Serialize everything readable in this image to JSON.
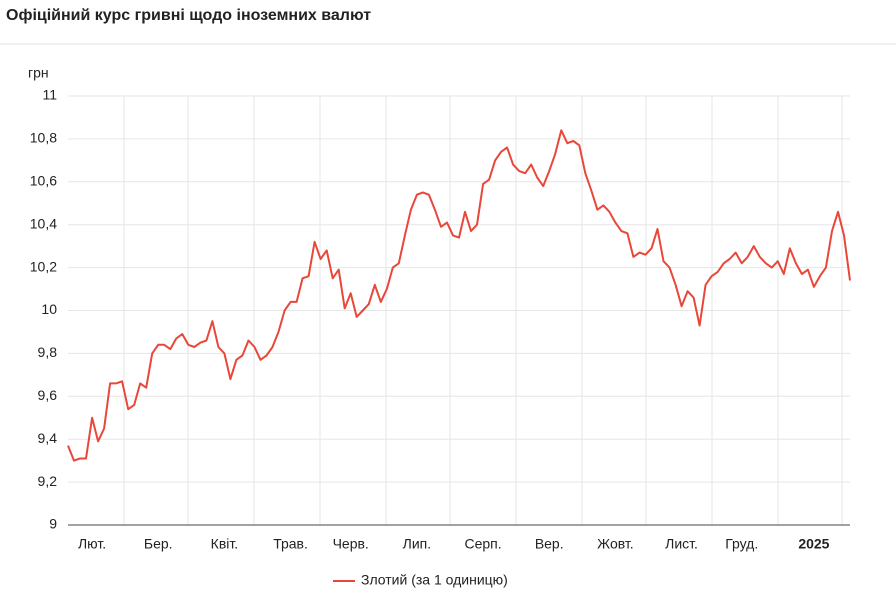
{
  "title": "Офіційний курс гривні щодо іноземних валют",
  "chart_data": {
    "type": "line",
    "y_label": "грн",
    "categories": [
      null,
      null,
      null,
      null,
      "Лют.",
      null,
      null,
      null,
      null,
      null,
      null,
      null,
      null,
      null,
      null,
      "Бер.",
      null,
      null,
      null,
      null,
      null,
      null,
      null,
      null,
      null,
      null,
      "Квіт.",
      null,
      null,
      null,
      null,
      null,
      null,
      null,
      null,
      null,
      null,
      "Трав.",
      null,
      null,
      null,
      null,
      null,
      null,
      null,
      null,
      null,
      "Черв.",
      null,
      null,
      null,
      null,
      null,
      null,
      null,
      null,
      null,
      null,
      "Лип.",
      null,
      null,
      null,
      null,
      null,
      null,
      null,
      null,
      null,
      null,
      "Серп.",
      null,
      null,
      null,
      null,
      null,
      null,
      null,
      null,
      null,
      null,
      "Вер.",
      null,
      null,
      null,
      null,
      null,
      null,
      null,
      null,
      null,
      null,
      "Жовт.",
      null,
      null,
      null,
      null,
      null,
      null,
      null,
      null,
      null,
      null,
      "Лист.",
      null,
      null,
      null,
      null,
      null,
      null,
      null,
      null,
      null,
      "Груд.",
      null,
      null,
      null,
      null,
      null,
      null,
      null,
      null,
      null,
      null,
      null,
      "2025",
      null,
      null,
      null,
      null,
      null,
      null
    ],
    "series": [
      {
        "name": "Злотий (за 1 одиницю)",
        "color": "#e8473a",
        "values": [
          9.37,
          9.3,
          9.31,
          9.31,
          9.5,
          9.39,
          9.45,
          9.66,
          9.66,
          9.67,
          9.54,
          9.56,
          9.66,
          9.64,
          9.8,
          9.84,
          9.84,
          9.82,
          9.87,
          9.89,
          9.84,
          9.83,
          9.85,
          9.86,
          9.95,
          9.83,
          9.8,
          9.68,
          9.77,
          9.79,
          9.86,
          9.83,
          9.77,
          9.79,
          9.83,
          9.9,
          10.0,
          10.04,
          10.04,
          10.15,
          10.16,
          10.32,
          10.24,
          10.28,
          10.15,
          10.19,
          10.01,
          10.08,
          9.97,
          10.0,
          10.03,
          10.12,
          10.04,
          10.1,
          10.2,
          10.22,
          10.35,
          10.47,
          10.54,
          10.55,
          10.54,
          10.47,
          10.39,
          10.41,
          10.35,
          10.34,
          10.46,
          10.37,
          10.4,
          10.59,
          10.61,
          10.7,
          10.74,
          10.76,
          10.68,
          10.65,
          10.64,
          10.68,
          10.62,
          10.58,
          10.65,
          10.73,
          10.84,
          10.78,
          10.79,
          10.77,
          10.64,
          10.56,
          10.47,
          10.49,
          10.46,
          10.41,
          10.37,
          10.36,
          10.25,
          10.27,
          10.26,
          10.29,
          10.38,
          10.23,
          10.2,
          10.12,
          10.02,
          10.09,
          10.06,
          9.93,
          10.12,
          10.16,
          10.18,
          10.22,
          10.24,
          10.27,
          10.22,
          10.25,
          10.3,
          10.25,
          10.22,
          10.2,
          10.23,
          10.17,
          10.29,
          10.22,
          10.17,
          10.19,
          10.11,
          10.16,
          10.2,
          10.37,
          10.46,
          10.35,
          10.14
        ]
      }
    ],
    "ylim": [
      9,
      11
    ],
    "yticks": [
      9,
      {
        "value": 9.2,
        "label": "9,2"
      },
      {
        "value": 9.4,
        "label": "9,4"
      },
      {
        "value": 9.6,
        "label": "9,6"
      },
      {
        "value": 9.8,
        "label": "9,8"
      },
      10,
      {
        "value": 10.2,
        "label": "10,2"
      },
      {
        "value": 10.4,
        "label": "10,4"
      },
      {
        "value": 10.6,
        "label": "10,6"
      },
      {
        "value": 10.8,
        "label": "10,8"
      },
      11
    ],
    "grid": true
  }
}
